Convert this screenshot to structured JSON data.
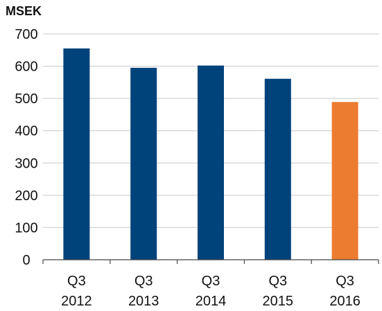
{
  "chart_data": {
    "type": "bar",
    "title": "",
    "unit_label": "MSEK",
    "xlabel": "",
    "ylabel": "",
    "ylim": [
      0,
      700
    ],
    "yticks": [
      0,
      100,
      200,
      300,
      400,
      500,
      600,
      700
    ],
    "grid": true,
    "legend": "none",
    "categories": [
      [
        "Q3",
        "2012"
      ],
      [
        "Q3",
        "2013"
      ],
      [
        "Q3",
        "2014"
      ],
      [
        "Q3",
        "2015"
      ],
      [
        "Q3",
        "2016"
      ]
    ],
    "values": [
      655,
      595,
      602,
      561,
      489
    ],
    "bar_colors": [
      "#00427a",
      "#00427a",
      "#00427a",
      "#00427a",
      "#ec7c30"
    ]
  }
}
